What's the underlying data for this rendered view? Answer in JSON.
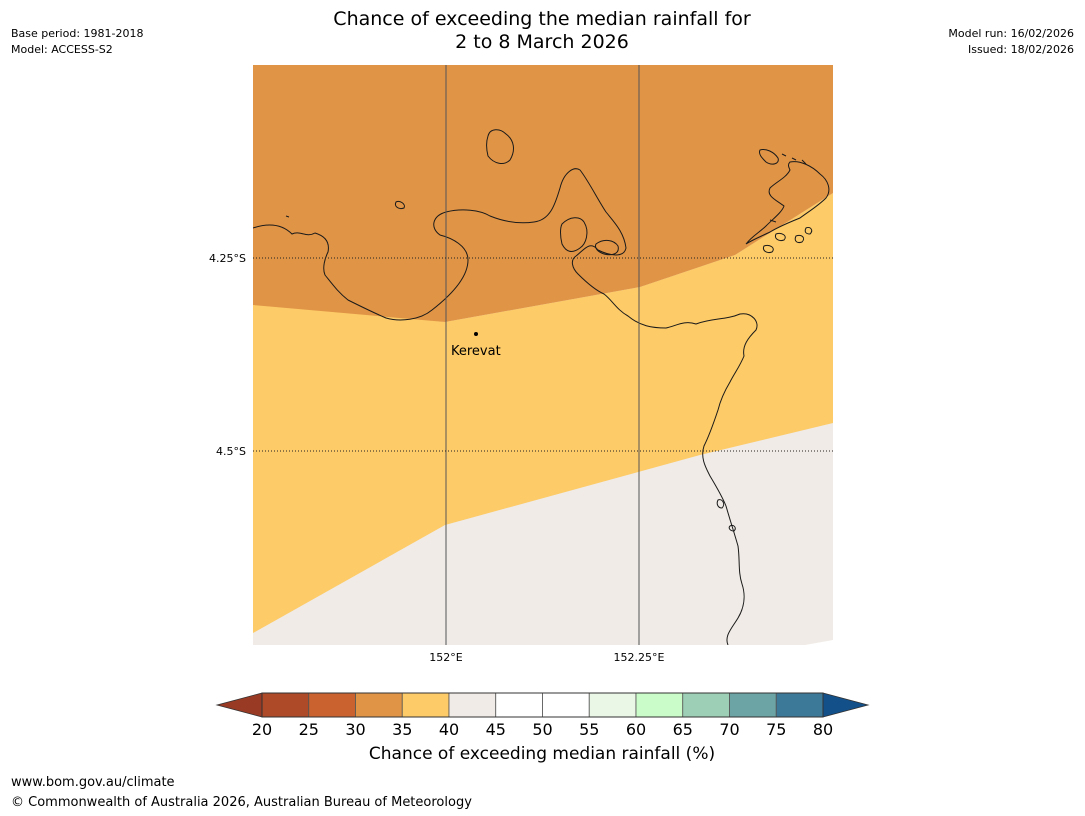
{
  "header": {
    "title_line1": "Chance of exceeding the median rainfall for",
    "title_line2": "2 to 8 March 2026",
    "base_period": "Base period: 1981-2018",
    "model": "Model: ACCESS-S2",
    "model_run": "Model run: 16/02/2026",
    "issued": "Issued: 18/02/2026"
  },
  "map": {
    "lat_labels": [
      "4.25°S",
      "4.5°S"
    ],
    "lon_labels": [
      "152°E",
      "152.25°E"
    ],
    "place": {
      "name": "Kerevat"
    }
  },
  "colorbar": {
    "ticks": [
      "20",
      "25",
      "30",
      "35",
      "40",
      "45",
      "50",
      "55",
      "60",
      "65",
      "70",
      "75",
      "80"
    ],
    "colors": [
      "#ae4a27",
      "#c9622f",
      "#e09446",
      "#fdcb67",
      "#f0ebe6",
      "#ffffff",
      "#ffffff",
      "#eaf6e6",
      "#c9fcc8",
      "#9ccfb6",
      "#6ca3a4",
      "#3c7898"
    ],
    "under_color": "#993a24",
    "over_color": "#13508a",
    "label": "Chance of exceeding median rainfall (%)"
  },
  "footer": {
    "url": "www.bom.gov.au/climate",
    "copyright": "© Commonwealth of Australia 2026, Australian Bureau of Meteorology"
  }
}
